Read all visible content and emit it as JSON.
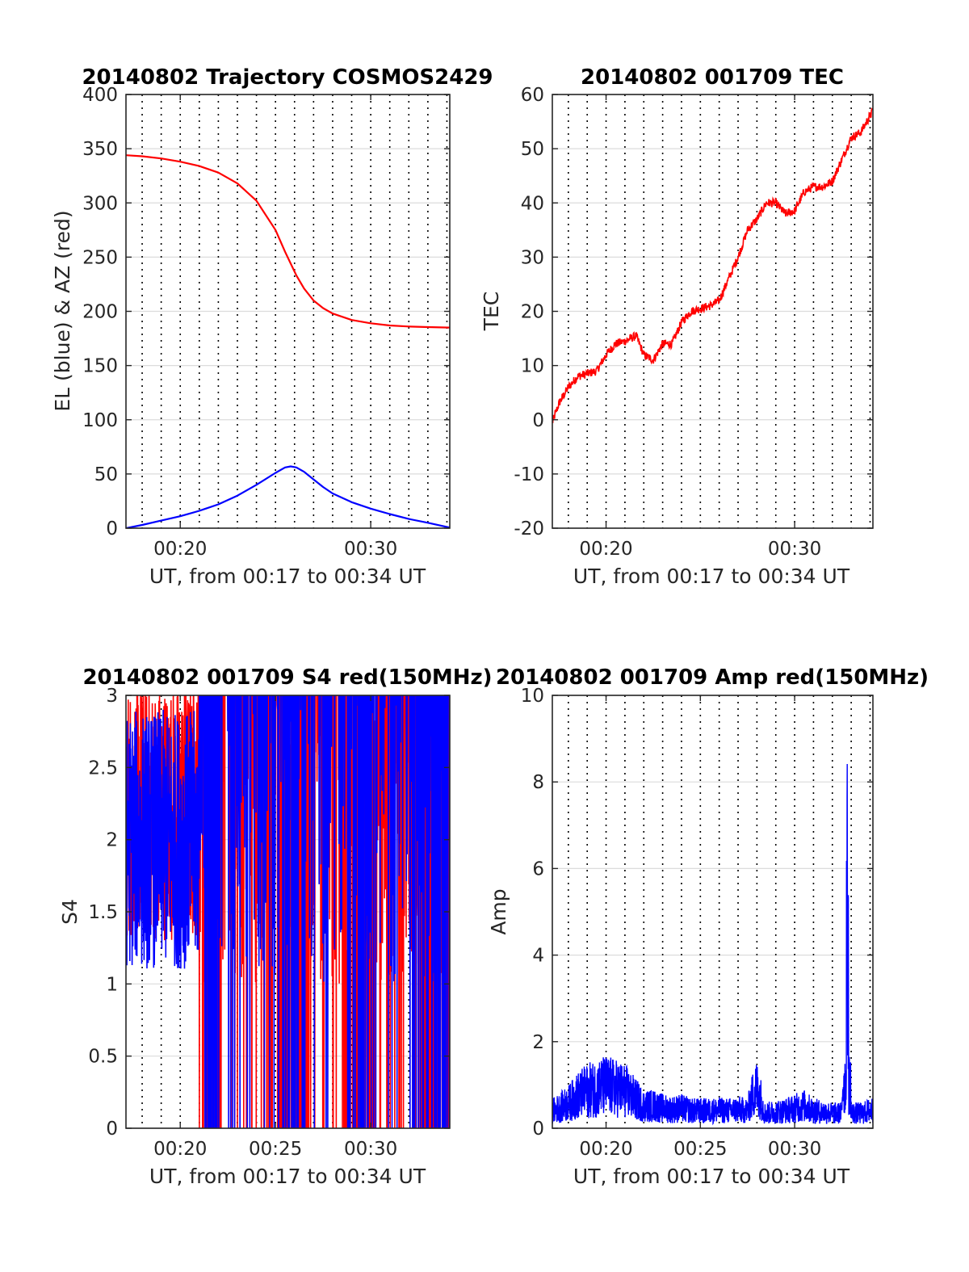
{
  "colors": {
    "el": "#0000ff",
    "az": "#ff0000",
    "s4_red": "#ff0000",
    "s4_blue": "#0000ff",
    "amp": "#0000ff",
    "grid": "#000000",
    "axis": "#262626"
  },
  "chart_data": [
    {
      "type": "line",
      "title": "20140802 Trajectory COSMOS2429",
      "xlabel": "UT, from 00:17 to 00:34 UT",
      "ylabel": "EL (blue) & AZ (red)",
      "xlim": [
        "00:17:09",
        "00:34:09"
      ],
      "ylim": [
        0,
        400
      ],
      "xticklabels": [
        "00:20",
        "00:30"
      ],
      "yticklabels": [
        "0",
        "50",
        "100",
        "150",
        "200",
        "250",
        "300",
        "350",
        "400"
      ],
      "grid": true,
      "x_minutes": [
        17.15,
        18,
        19,
        20,
        21,
        22,
        23,
        24,
        25,
        25.5,
        25.8,
        26.1,
        26.5,
        27,
        27.5,
        28,
        29,
        30,
        31,
        32,
        33,
        34.15
      ],
      "series": [
        {
          "color": "#0000ff",
          "values": [
            0,
            3,
            7,
            11,
            16,
            22,
            30,
            40,
            51,
            56,
            57,
            56,
            52,
            45,
            38,
            32,
            24,
            18,
            13,
            8.5,
            5,
            0.5
          ]
        },
        {
          "color": "#ff0000",
          "values": [
            344,
            343,
            341,
            338,
            334,
            328,
            318,
            302,
            275,
            255,
            244,
            233,
            221,
            210,
            203,
            198,
            192,
            189,
            187,
            186,
            185.5,
            185
          ]
        }
      ]
    },
    {
      "type": "line",
      "title": "20140802 001709 TEC",
      "xlabel": "UT, from 00:17 to 00:34 UT",
      "ylabel": "TEC",
      "xlim": [
        "00:17:09",
        "00:34:09"
      ],
      "ylim": [
        -20,
        60
      ],
      "xticklabels": [
        "00:20",
        "00:30"
      ],
      "yticklabels": [
        "-20",
        "-10",
        "0",
        "10",
        "20",
        "30",
        "40",
        "50",
        "60"
      ],
      "grid": true,
      "x_minutes": [
        17.15,
        17.5,
        18,
        18.5,
        19,
        19.5,
        20,
        20.5,
        21,
        21.6,
        22,
        22.5,
        23,
        23.5,
        24,
        24.5,
        25,
        25.5,
        26,
        26.5,
        27,
        27.5,
        28,
        28.5,
        29,
        29.5,
        30,
        30.5,
        31,
        31.5,
        32,
        32.5,
        33,
        33.5,
        34.15
      ],
      "series": [
        {
          "color": "#ff0000",
          "values": [
            -0.5,
            3,
            6,
            8,
            8.5,
            9,
            12,
            14,
            14.5,
            15.5,
            12,
            11,
            14,
            14,
            18,
            20,
            20.5,
            21,
            22,
            26,
            30,
            35,
            37,
            40,
            40,
            38,
            38.5,
            42,
            43,
            43,
            44,
            48,
            52,
            53,
            57
          ]
        }
      ]
    },
    {
      "type": "line",
      "title": "20140802 001709 S4 red(150MHz)",
      "xlabel": "UT, from 00:17 to 00:34 UT",
      "ylabel": "S4",
      "xlim": [
        "00:17:09",
        "00:34:09"
      ],
      "ylim": [
        0,
        3
      ],
      "xticklabels": [
        "00:20",
        "00:25",
        "00:30"
      ],
      "yticklabels": [
        "0",
        "0.5",
        "1",
        "1.5",
        "2",
        "2.5",
        "3"
      ],
      "grid": true,
      "series": [
        {
          "color": "#ff0000",
          "note": "dense noisy series: 1.2-3 before 00:21, dropouts to 0 and saturation at 3 after 00:21"
        },
        {
          "color": "#0000ff",
          "note": "dense noisy series: 0.9-3 before 00:21, mostly saturated at 3 with dropouts to 0 after 00:21"
        }
      ]
    },
    {
      "type": "line",
      "title": "20140802 001709 Amp red(150MHz)",
      "xlabel": "UT, from 00:17 to 00:34 UT",
      "ylabel": "Amp",
      "xlim": [
        "00:17:09",
        "00:34:09"
      ],
      "ylim": [
        0,
        10
      ],
      "xticklabels": [
        "00:20",
        "00:25",
        "00:30"
      ],
      "yticklabels": [
        "0",
        "2",
        "4",
        "6",
        "8",
        "10"
      ],
      "grid": true,
      "x_minutes": [
        17.15,
        17.5,
        18,
        18.5,
        19,
        19.5,
        20,
        20.5,
        21,
        21.5,
        22,
        22.5,
        23,
        23.5,
        24,
        24.5,
        25,
        25.5,
        26,
        26.5,
        27,
        27.5,
        27.9,
        28.1,
        28.4,
        29,
        29.5,
        30,
        30.5,
        31,
        31.5,
        32,
        32.5,
        32.8,
        33,
        33.3,
        33.6,
        34.15
      ],
      "series": [
        {
          "color": "#0000ff",
          "values": [
            0.7,
            0.8,
            1.0,
            1.3,
            1.5,
            1.6,
            1.7,
            1.6,
            1.5,
            1.2,
            0.9,
            0.9,
            0.8,
            0.75,
            0.8,
            0.7,
            0.7,
            0.7,
            0.72,
            0.7,
            0.75,
            0.7,
            1.6,
            1.5,
            0.6,
            0.65,
            0.7,
            0.8,
            0.9,
            0.7,
            0.65,
            0.6,
            0.6,
            8.8,
            0.6,
            0.6,
            0.6,
            0.75
          ]
        }
      ]
    }
  ]
}
